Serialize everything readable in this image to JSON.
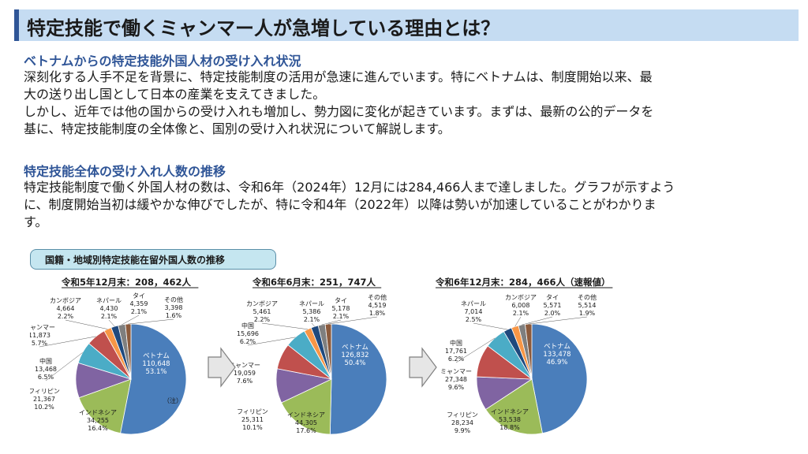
{
  "page_title": "特定技能で働くミャンマー人が急増している理由とは？",
  "section1": {
    "heading": "ベトナムからの特定技能外国人材の受け入れ状況",
    "lines": [
      "深刻化する人手不足を背景に、特定技能制度の活用が急速に進んでいます。特にベトナムは、制度開始以来、最",
      "大の送り出し国として日本の産業を支えてきました。",
      "しかし、近年では他の国からの受け入れも増加し、勢力図に変化が起きています。まずは、最新の公的データを",
      "基に、特定技能制度の全体像と、国別の受け入れ状況について解説します。"
    ]
  },
  "section2": {
    "heading": "特定技能全体の受け入れ人数の推移",
    "lines": [
      "特定技能制度で働く外国人材の数は、令和6年（2024年）12月には284,466人まで達しました。グラフが示すよう",
      "に、制度開始当初は緩やかな伸びでしたが、特に令和4年（2022年）以降は勢いが加速していることがわかりま",
      "す。"
    ]
  },
  "figure_title": "国籍・地域別特定技能在留外国人数の推移",
  "colors": {
    "ベトナム": "#4a7ebb",
    "インドネシア": "#9bbb59",
    "フィリピン": "#8064a2",
    "中国": "#4bacc6",
    "ミャンマー": "#c0504d",
    "カンボジア": "#f79646",
    "ネパール": "#1f497d",
    "タイ": "#7f7f7f",
    "その他": "#8b5a3c"
  },
  "chart_data": [
    {
      "type": "pie",
      "title": "令和5年12月末：208，462人",
      "note": "（注）",
      "slices": [
        {
          "name": "ベトナム",
          "value": 110648,
          "value_text": "110,648",
          "pct": "53.1%"
        },
        {
          "name": "インドネシア",
          "value": 34255,
          "value_text": "34,255",
          "pct": "16.4%"
        },
        {
          "name": "フィリピン",
          "value": 21367,
          "value_text": "21,367",
          "pct": "10.2%"
        },
        {
          "name": "中国",
          "value": 13468,
          "value_text": "13,468",
          "pct": "6.5%"
        },
        {
          "name": "ミャンマー",
          "value": 11873,
          "value_text": "11,873",
          "pct": "5.7%"
        },
        {
          "name": "カンボジア",
          "value": 4664,
          "value_text": "4,664",
          "pct": "2.2%"
        },
        {
          "name": "ネパール",
          "value": 4430,
          "value_text": "4,430",
          "pct": "2.1%"
        },
        {
          "name": "タイ",
          "value": 4359,
          "value_text": "4,359",
          "pct": "2.1%"
        },
        {
          "name": "その他",
          "value": 3398,
          "value_text": "3,398",
          "pct": "1.6%"
        }
      ]
    },
    {
      "type": "pie",
      "title": "令和6年6月末：251，747人",
      "slices": [
        {
          "name": "ベトナム",
          "value": 126832,
          "value_text": "126,832",
          "pct": "50.4%"
        },
        {
          "name": "インドネシア",
          "value": 44305,
          "value_text": "44,305",
          "pct": "17.6%"
        },
        {
          "name": "フィリピン",
          "value": 25311,
          "value_text": "25,311",
          "pct": "10.1%"
        },
        {
          "name": "ミャンマー",
          "value": 19059,
          "value_text": "19,059",
          "pct": "7.6%"
        },
        {
          "name": "中国",
          "value": 15696,
          "value_text": "15,696",
          "pct": "6.2%"
        },
        {
          "name": "カンボジア",
          "value": 5461,
          "value_text": "5,461",
          "pct": "2.2%"
        },
        {
          "name": "ネパール",
          "value": 5386,
          "value_text": "5,386",
          "pct": "2.1%"
        },
        {
          "name": "タイ",
          "value": 5178,
          "value_text": "5,178",
          "pct": "2.1%"
        },
        {
          "name": "その他",
          "value": 4519,
          "value_text": "4,519",
          "pct": "1.8%"
        }
      ]
    },
    {
      "type": "pie",
      "title": "令和6年12月末：284，466人（速報値）",
      "slices": [
        {
          "name": "ベトナム",
          "value": 133478,
          "value_text": "133,478",
          "pct": "46.9%"
        },
        {
          "name": "インドネシア",
          "value": 53538,
          "value_text": "53,538",
          "pct": "18.8%"
        },
        {
          "name": "フィリピン",
          "value": 28234,
          "value_text": "28,234",
          "pct": "9.9%"
        },
        {
          "name": "ミャンマー",
          "value": 27348,
          "value_text": "27,348",
          "pct": "9.6%"
        },
        {
          "name": "中国",
          "value": 17761,
          "value_text": "17,761",
          "pct": "6.2%"
        },
        {
          "name": "ネパール",
          "value": 7014,
          "value_text": "7,014",
          "pct": "2.5%"
        },
        {
          "name": "カンボジア",
          "value": 6008,
          "value_text": "6,008",
          "pct": "2.1%"
        },
        {
          "name": "タイ",
          "value": 5571,
          "value_text": "5,571",
          "pct": "2.0%"
        },
        {
          "name": "その他",
          "value": 5514,
          "value_text": "5,514",
          "pct": "1.9%"
        }
      ]
    }
  ]
}
